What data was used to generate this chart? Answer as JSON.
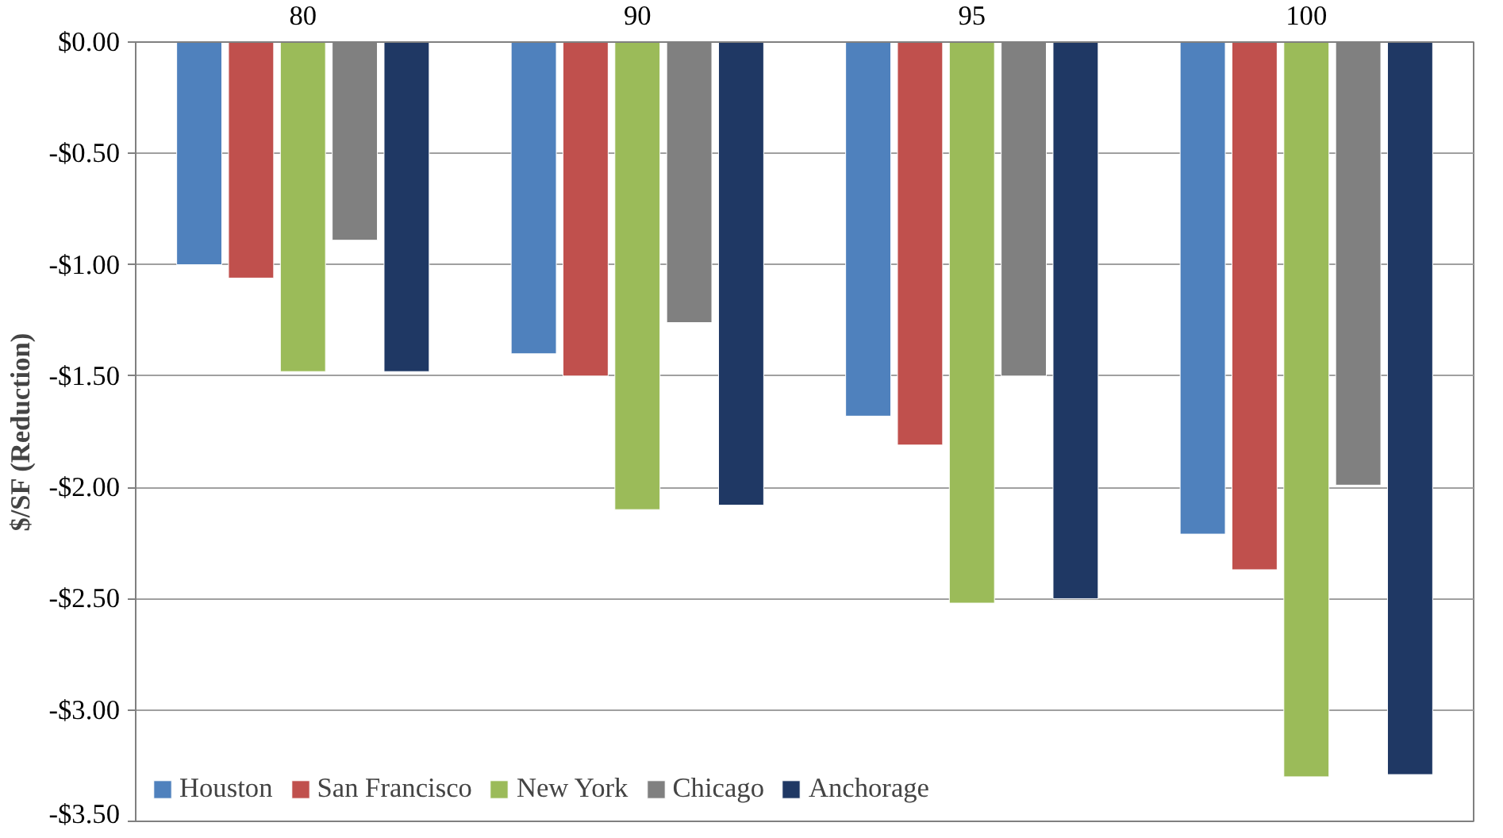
{
  "chart_data": {
    "type": "bar",
    "ylabel": "$/SF (Reduction)",
    "categories": [
      "80",
      "90",
      "95",
      "100"
    ],
    "series": [
      {
        "name": "Houston",
        "color": "#4f81bd",
        "values": [
          -1.0,
          -1.4,
          -1.68,
          -2.21
        ]
      },
      {
        "name": "San Francisco",
        "color": "#c0504d",
        "values": [
          -1.06,
          -1.5,
          -1.81,
          -2.37
        ]
      },
      {
        "name": "New York",
        "color": "#9bbb59",
        "values": [
          -1.48,
          -2.1,
          -2.52,
          -3.3
        ]
      },
      {
        "name": "Chicago",
        "color": "#808080",
        "values": [
          -0.89,
          -1.26,
          -1.5,
          -1.99
        ]
      },
      {
        "name": "Anchorage",
        "color": "#1f3864",
        "values": [
          -1.48,
          -2.08,
          -2.5,
          -3.29
        ]
      }
    ],
    "ylim": [
      -3.5,
      0
    ],
    "yticks": [
      {
        "value": 0,
        "label": "$0.00"
      },
      {
        "value": -0.5,
        "label": "-$0.50"
      },
      {
        "value": -1,
        "label": "-$1.00"
      },
      {
        "value": -1.5,
        "label": "-$1.50"
      },
      {
        "value": -2,
        "label": "-$2.00"
      },
      {
        "value": -2.5,
        "label": "-$2.50"
      },
      {
        "value": -3,
        "label": "-$3.00"
      },
      {
        "value": -3.5,
        "label": "-$3.50"
      }
    ],
    "grid": "y",
    "legend": "bottom left"
  }
}
